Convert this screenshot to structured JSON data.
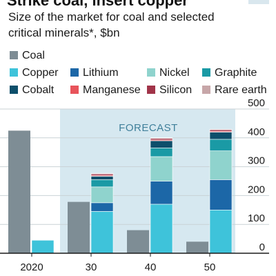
{
  "title": "Strike coal, insert copper",
  "subtitle_line1": "Size of the market for coal and selected",
  "subtitle_line2": "critical minerals*, $bn",
  "forecast_label": "FORECAST",
  "colors": {
    "Coal": "#7e8d95",
    "Copper": "#3ec3da",
    "Lithium": "#1c67a7",
    "Nickel": "#8fd3cd",
    "Graphite": "#1a9aa5",
    "Cobalt": "#0d4f6b",
    "Manganese": "#e8545b",
    "Silicon": "#a13449",
    "Rare earth": "#c7a6a8",
    "forecast_band": "#d6e8f0",
    "axis": "#1a1a1a",
    "grid": "#c9d2d6",
    "forecast_text": "#3f7f9a",
    "title_bar": "#e3001b"
  },
  "chart_data": {
    "type": "bar",
    "stacked": true,
    "grouped": true,
    "categories": [
      "2020",
      "30",
      "40",
      "50"
    ],
    "ylim": [
      0,
      500
    ],
    "yticks": [
      0,
      100,
      200,
      300,
      400,
      500
    ],
    "ylabel": "",
    "xlabel": "",
    "legend_position": "top",
    "legend": [
      "Coal",
      "Copper",
      "Lithium",
      "Nickel",
      "Graphite",
      "Cobalt",
      "Manganese",
      "Silicon",
      "Rare earth"
    ],
    "series": [
      {
        "name": "Coal",
        "values": [
          425,
          178,
          80,
          40
        ]
      },
      {
        "name": "Copper",
        "values": [
          45,
          145,
          170,
          150
        ]
      },
      {
        "name": "Lithium",
        "values": [
          0,
          30,
          80,
          105
        ]
      },
      {
        "name": "Nickel",
        "values": [
          0,
          55,
          85,
          100
        ]
      },
      {
        "name": "Graphite",
        "values": [
          0,
          25,
          30,
          40
        ]
      },
      {
        "name": "Cobalt",
        "values": [
          0,
          12,
          25,
          25
        ]
      },
      {
        "name": "Manganese",
        "values": [
          0,
          3,
          3,
          3
        ]
      },
      {
        "name": "Silicon",
        "values": [
          0,
          5,
          5,
          5
        ]
      },
      {
        "name": "Rare earth",
        "values": [
          0,
          2,
          2,
          2
        ]
      }
    ]
  }
}
